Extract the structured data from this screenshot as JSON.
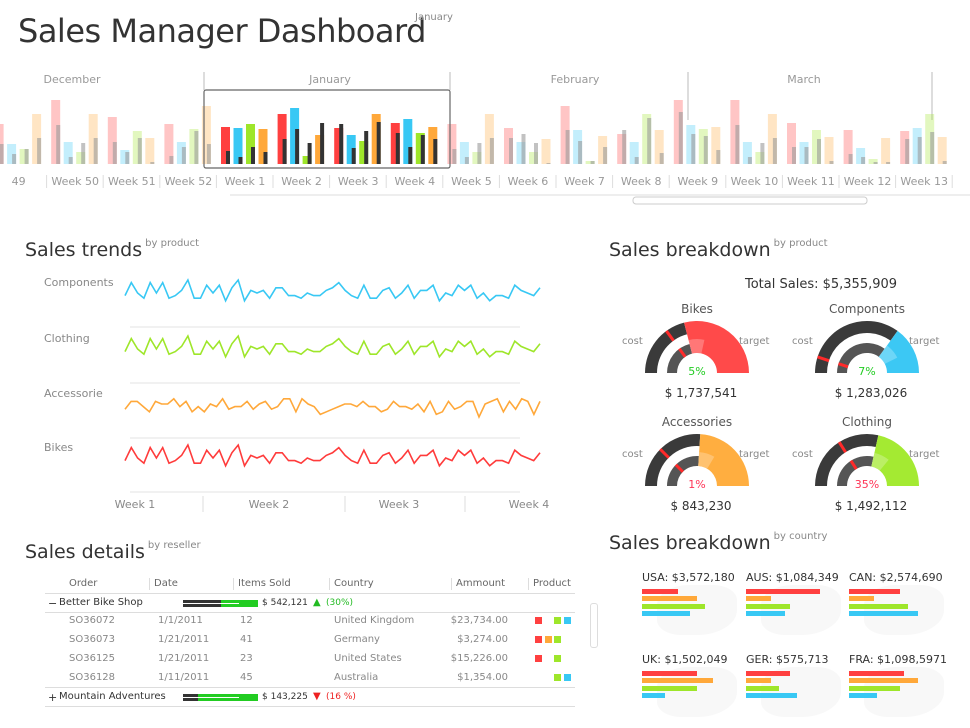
{
  "header": {
    "title": "Sales Manager Dashboard",
    "subtitle": "January"
  },
  "overview": {
    "months": [
      "December",
      "January",
      "February",
      "March"
    ],
    "weeks": [
      "49",
      "Week 50",
      "Week 51",
      "Week 52",
      "Week 1",
      "Week 2",
      "Week 3",
      "Week 4",
      "Week 5",
      "Week 6",
      "Week 7",
      "Week 8",
      "Week 9",
      "Week 10",
      "Week 11",
      "Week 12",
      "Week 13"
    ],
    "selected_weeks": [
      "Week 1",
      "Week 2",
      "Week 3",
      "Week 4"
    ],
    "colors": {
      "bikes": "#ff4040",
      "components": "#38c8f4",
      "clothing": "#9ee62a",
      "accessories": "#ffa83a",
      "target": "#3a3a3a"
    },
    "chart_data": {
      "type": "bar",
      "categories": [
        "49",
        "Week 50",
        "Week 51",
        "Week 52",
        "Week 1",
        "Week 2",
        "Week 3",
        "Week 4",
        "Week 5",
        "Week 6",
        "Week 7",
        "Week 8",
        "Week 9",
        "Week 10",
        "Week 11",
        "Week 12",
        "Week 13"
      ],
      "series": [
        {
          "key": "bikes",
          "values": [
            40,
            64,
            47,
            40,
            37,
            50,
            36,
            41,
            40,
            36,
            58,
            30,
            64,
            64,
            41,
            34,
            33
          ],
          "target": [
            20,
            39,
            22,
            8,
            13,
            25,
            40,
            31,
            15,
            26,
            34,
            34,
            52,
            39,
            17,
            10,
            25
          ]
        },
        {
          "key": "components",
          "values": [
            20,
            22,
            14,
            22,
            36,
            56,
            29,
            45,
            22,
            22,
            34,
            22,
            39,
            22,
            22,
            16,
            36
          ],
          "target": [
            10,
            7,
            12,
            17,
            7,
            35,
            16,
            17,
            7,
            30,
            23,
            7,
            30,
            7,
            17,
            7,
            27
          ]
        },
        {
          "key": "clothing",
          "values": [
            15,
            12,
            33,
            35,
            40,
            8,
            23,
            31,
            12,
            12,
            3,
            50,
            35,
            12,
            34,
            5,
            50
          ],
          "target": [
            15,
            21,
            26,
            33,
            17,
            21,
            33,
            29,
            21,
            21,
            3,
            46,
            28,
            21,
            25,
            2,
            32
          ]
        },
        {
          "key": "accessories",
          "values": [
            50,
            50,
            26,
            58,
            35,
            29,
            50,
            37,
            50,
            25,
            28,
            34,
            37,
            50,
            27,
            26,
            27
          ],
          "target": [
            26,
            26,
            2,
            20,
            12,
            41,
            42,
            25,
            26,
            1,
            17,
            11,
            14,
            26,
            3,
            2,
            3
          ]
        }
      ]
    }
  },
  "trends": {
    "title": "Sales trends",
    "subtitle": "by product",
    "rows": [
      {
        "label": "Components",
        "color": "#38c8f4",
        "series": "a"
      },
      {
        "label": "Clothing",
        "color": "#9ee62a",
        "series": "a"
      },
      {
        "label": "Accessorie",
        "color": "#ffa83a",
        "series": "b"
      },
      {
        "label": "Bikes",
        "color": "#ff3b3b",
        "series": "a"
      }
    ],
    "x_labels": [
      "Week 1",
      "Week 2",
      "Week 3",
      "Week 4"
    ],
    "chart_data": {
      "type": "line",
      "series_a": [
        4,
        9,
        5,
        3,
        9,
        5,
        9,
        3,
        4,
        6,
        10,
        3,
        3,
        8,
        5,
        8,
        2,
        7,
        10,
        2,
        6,
        5,
        6,
        3,
        7,
        7,
        4,
        4,
        3,
        5,
        4,
        4,
        6,
        7,
        9,
        6,
        4,
        3,
        8,
        3,
        3,
        6,
        7,
        3,
        5,
        8,
        3,
        6,
        6,
        8,
        2,
        5,
        4,
        8,
        6,
        8,
        3,
        5,
        2,
        4,
        4,
        3,
        8,
        6,
        5,
        4,
        7
      ],
      "series_b": [
        3,
        6,
        6,
        4,
        2,
        6,
        5,
        5,
        7,
        4,
        6,
        2,
        4,
        2,
        5,
        4,
        7,
        3,
        4,
        4,
        6,
        3,
        5,
        6,
        3,
        4,
        7,
        7,
        2,
        7,
        5,
        4,
        1,
        2,
        3,
        4,
        5,
        5,
        4,
        6,
        4,
        4,
        2,
        3,
        6,
        4,
        4,
        3,
        5,
        2,
        6,
        1,
        2,
        6,
        3,
        4,
        6,
        6,
        0,
        5,
        6,
        7,
        2,
        6,
        3,
        7,
        6,
        1,
        6
      ]
    }
  },
  "breakdown_product": {
    "title": "Sales breakdown",
    "subtitle": "by product",
    "total": "Total Sales: $5,355,909",
    "cost_label": "cost",
    "target_label": "target",
    "gauges": [
      {
        "name": "Bikes",
        "percent": "5%",
        "percent_color": "#22cc22",
        "amount": "$ 1,737,541",
        "color": "#ff4a4a",
        "fill_start": 0.42,
        "cost_mark": 0.3
      },
      {
        "name": "Components",
        "percent": "7%",
        "percent_color": "#22cc22",
        "amount": "$ 1,283,026",
        "color": "#3cc8f4",
        "fill_start": 0.7,
        "cost_mark": 0.1
      },
      {
        "name": "Accessories",
        "percent": "1%",
        "percent_color": "#ff3355",
        "amount": "$ 843,230",
        "color": "#ffae40",
        "fill_start": 0.52,
        "cost_mark": 0.25
      },
      {
        "name": "Clothing",
        "percent": "35%",
        "percent_color": "#ff3355",
        "amount": "$ 1,492,112",
        "color": "#a4ea32",
        "fill_start": 0.57,
        "cost_mark": 0.32
      }
    ]
  },
  "details": {
    "title": "Sales details",
    "subtitle": "by reseller",
    "columns": [
      "Order",
      "Date",
      "Items Sold",
      "Country",
      "Ammount",
      "Product"
    ],
    "groups": [
      {
        "toggle": "−",
        "name": "Better Bike Shop",
        "total": "$ 542,121",
        "trend_icon": "▲",
        "change": "(30%)",
        "change_color": "#22bb22",
        "progress": 0.75,
        "rows": [
          {
            "order": "SO36072",
            "date": "1/1/2011",
            "items": "12",
            "country": "United Kingdom",
            "amount": "$23,734.00",
            "products": [
              "#ff4040",
              "",
              "#9ee62a",
              "#38c8f4"
            ]
          },
          {
            "order": "SO36073",
            "date": "1/21/2011",
            "items": "41",
            "country": "Germany",
            "amount": "$3,274.00",
            "products": [
              "#ff4040",
              "#ffa83a",
              "#9ee62a",
              ""
            ]
          },
          {
            "order": "SO36125",
            "date": "1/21/2011",
            "items": "23",
            "country": "United States",
            "amount": "$15,226.00",
            "products": [
              "#ff4040",
              "",
              "#9ee62a",
              ""
            ]
          },
          {
            "order": "SO36128",
            "date": "1/11/2011",
            "items": "45",
            "country": "Australia",
            "amount": "$1,354.00",
            "products": [
              "",
              "",
              "#9ee62a",
              "#38c8f4"
            ]
          }
        ]
      },
      {
        "toggle": "+",
        "name": "Mountain Adventures",
        "total": "$ 143,225",
        "trend_icon": "▼",
        "change": "(16 %)",
        "change_color": "#ee2222",
        "progress": 0.45,
        "rows": []
      }
    ]
  },
  "breakdown_country": {
    "title": "Sales breakdown",
    "subtitle": "by country",
    "bar_colors": [
      "#ff4040",
      "#ffa83a",
      "#9ee62a",
      "#38c8f4"
    ],
    "countries": [
      {
        "label": "USA: $3,572,180",
        "values": [
          36,
          55,
          63,
          48
        ]
      },
      {
        "label": "AUS: $1,084,349",
        "values": [
          74,
          25,
          44,
          39
        ]
      },
      {
        "label": "CAN: $2,574,690",
        "values": [
          51,
          25,
          59,
          69
        ]
      },
      {
        "label": "UK: $1,502,049",
        "values": [
          55,
          71,
          55,
          23
        ]
      },
      {
        "label": "GER: $575,713",
        "values": [
          44,
          25,
          33,
          51
        ]
      },
      {
        "label": "FRA: $1,098,5971",
        "values": [
          55,
          69,
          51,
          28
        ]
      }
    ]
  }
}
